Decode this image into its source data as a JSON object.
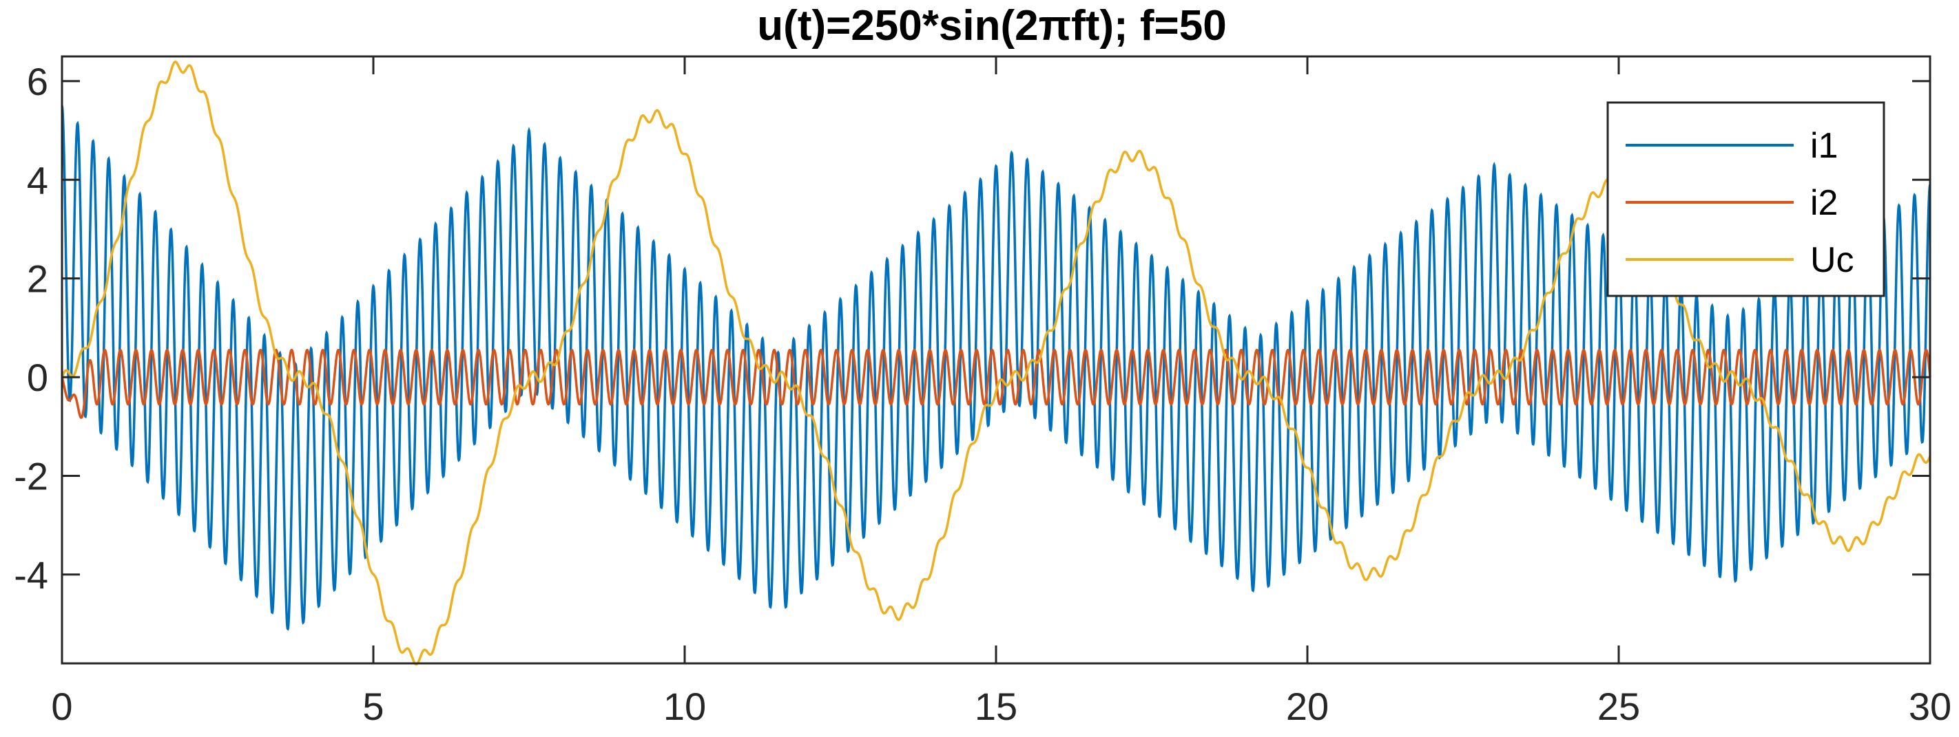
{
  "chart_data": {
    "type": "line",
    "title": "u(t)=250*sin(2πft); f=50",
    "xlabel": "",
    "ylabel": "",
    "xlim": [
      0,
      30
    ],
    "ylim": [
      -5.8,
      6.5
    ],
    "x_ticks": [
      0,
      5,
      10,
      15,
      20,
      25,
      30
    ],
    "x_tick_labels": [
      "0",
      "5",
      "10",
      "15",
      "20",
      "25",
      "30"
    ],
    "y_ticks": [
      -4,
      -2,
      0,
      2,
      4,
      6
    ],
    "y_tick_labels": [
      "-4",
      "-2",
      "0",
      "2",
      "4",
      "6"
    ],
    "grid": false,
    "legend_position": "top-right",
    "series": [
      {
        "name": "i1",
        "color": "#0072BD",
        "description_points": {
          "oscillation_period": 0.25,
          "envelope_t": [
            0,
            3.7,
            7.5,
            11.5,
            15.3,
            19.2,
            23.0,
            26.8,
            30
          ],
          "envelope_upper": [
            5.5,
            0.2,
            5.0,
            0.5,
            4.6,
            0.8,
            4.3,
            1.2,
            3.9
          ],
          "envelope_lower": [
            -0.3,
            -5.2,
            -0.2,
            -4.8,
            -0.5,
            -4.4,
            -0.8,
            -4.2,
            -1.2
          ]
        }
      },
      {
        "name": "i2",
        "color": "#D95319",
        "description_points": {
          "oscillation_period": 0.25,
          "amplitude": 0.55,
          "initial_min": -0.75
        }
      },
      {
        "name": "Uc",
        "color": "#EDB120",
        "description_points": {
          "t": [
            0,
            1.9,
            3.8,
            5.7,
            7.6,
            9.5,
            11.5,
            13.4,
            15.3,
            17.2,
            19.1,
            21.0,
            23.0,
            24.9,
            26.8,
            28.7,
            30
          ],
          "values": [
            0,
            6.3,
            0,
            -5.7,
            0,
            5.3,
            0,
            -4.8,
            0,
            4.5,
            0,
            -4.0,
            0,
            3.9,
            0,
            -3.4,
            -1.6
          ]
        }
      }
    ]
  }
}
